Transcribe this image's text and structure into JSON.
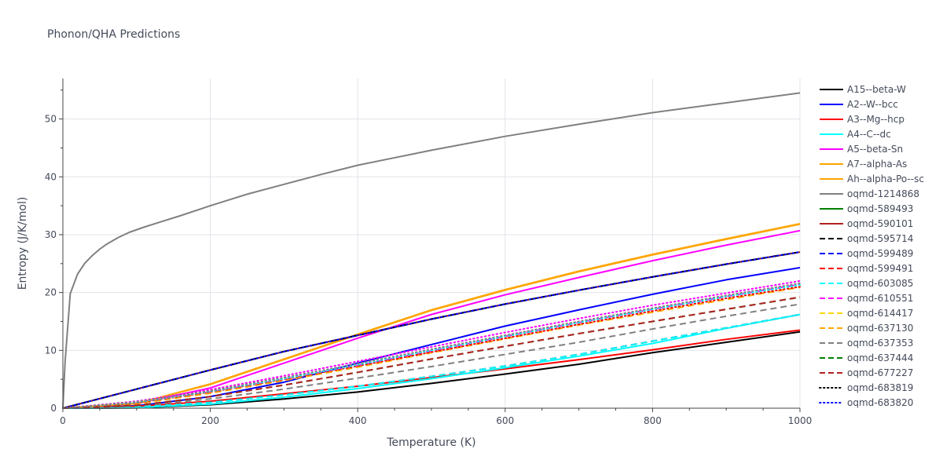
{
  "title": "Phonon/QHA Predictions",
  "chart_data": {
    "type": "line",
    "title": "Phonon/QHA Predictions",
    "xlabel": "Temperature (K)",
    "ylabel": "Entropy (J/K/mol)",
    "xlim": [
      0,
      1000
    ],
    "ylim": [
      0,
      57
    ],
    "x_ticks": [
      0,
      200,
      400,
      600,
      800,
      1000
    ],
    "y_ticks": [
      0,
      10,
      20,
      30,
      40,
      50
    ],
    "grid": true,
    "legend_position": "right",
    "series": [
      {
        "name": "A15--beta-W",
        "color": "#000000",
        "dash": "solid",
        "x": [
          0,
          100,
          200,
          300,
          400,
          500,
          600,
          700,
          800,
          900,
          1000
        ],
        "y": [
          0,
          0.05,
          0.6,
          1.6,
          2.8,
          4.3,
          5.9,
          7.6,
          9.6,
          11.4,
          13.2
        ]
      },
      {
        "name": "A2--W--bcc",
        "color": "#0000ff",
        "dash": "solid",
        "x": [
          0,
          100,
          200,
          300,
          400,
          500,
          600,
          700,
          800,
          900,
          1000
        ],
        "y": [
          0,
          0.4,
          2.0,
          4.5,
          7.8,
          11.0,
          14.2,
          17.0,
          19.7,
          22.2,
          24.3
        ]
      },
      {
        "name": "A3--Mg--hcp",
        "color": "#ff0000",
        "dash": "solid",
        "x": [
          0,
          100,
          200,
          300,
          400,
          500,
          600,
          700,
          800,
          900,
          1000
        ],
        "y": [
          0,
          0.3,
          1.2,
          2.5,
          3.8,
          5.3,
          6.8,
          8.4,
          10.1,
          11.9,
          13.5
        ]
      },
      {
        "name": "A4--C--dc",
        "color": "#00ffff",
        "dash": "solid",
        "x": [
          0,
          100,
          200,
          300,
          400,
          500,
          600,
          700,
          800,
          900,
          1000
        ],
        "y": [
          0,
          0.1,
          0.7,
          1.9,
          3.4,
          5.1,
          7.0,
          9.0,
          11.2,
          13.8,
          16.2
        ]
      },
      {
        "name": "A5--beta-Sn",
        "color": "#ff00ff",
        "dash": "solid",
        "x": [
          0,
          100,
          200,
          300,
          400,
          500,
          600,
          700,
          800,
          900,
          1000
        ],
        "y": [
          0,
          0.8,
          3.5,
          7.8,
          12.1,
          16.2,
          19.6,
          22.6,
          25.5,
          28.2,
          30.7
        ]
      },
      {
        "name": "A7--alpha-As",
        "color": "#ffa500",
        "dash": "solid",
        "x": [
          0,
          100,
          200,
          300,
          400,
          500,
          600,
          700,
          800,
          900,
          1000
        ],
        "y": [
          0,
          0.8,
          4.2,
          8.5,
          12.8,
          17.0,
          20.5,
          23.7,
          26.6,
          29.3,
          31.9
        ]
      },
      {
        "name": "Ah--alpha-Po--sc",
        "color": "#ffa500",
        "dash": "solid",
        "x": [
          0,
          100,
          200,
          300,
          400,
          500,
          600,
          700,
          800,
          900,
          1000
        ],
        "y": [
          0,
          0.8,
          4.1,
          8.4,
          12.7,
          16.9,
          20.4,
          23.6,
          26.5,
          29.2,
          31.8
        ]
      },
      {
        "name": "oqmd-1214868",
        "color": "#808080",
        "dash": "solid",
        "x": [
          0,
          3,
          10,
          20,
          30,
          40,
          50,
          60,
          75,
          90,
          110,
          130,
          160,
          200,
          250,
          300,
          350,
          400,
          450,
          500,
          600,
          700,
          800,
          900,
          1000
        ],
        "y": [
          0,
          8,
          19.8,
          23.2,
          25.1,
          26.4,
          27.5,
          28.4,
          29.5,
          30.4,
          31.3,
          32.1,
          33.3,
          35.0,
          37.0,
          38.7,
          40.4,
          42.0,
          43.3,
          44.6,
          47.0,
          49.1,
          51.1,
          52.8,
          54.5
        ]
      },
      {
        "name": "oqmd-589493",
        "color": "#008000",
        "dash": "solid",
        "x": [
          0,
          100,
          200,
          300,
          400,
          500,
          600,
          700,
          800,
          900,
          1000
        ],
        "y": [
          0,
          3.3,
          6.6,
          9.8,
          12.6,
          15.4,
          18.0,
          20.4,
          22.7,
          24.9,
          27.0
        ]
      },
      {
        "name": "oqmd-590101",
        "color": "#b22222",
        "dash": "solid",
        "x": [
          0,
          100,
          200,
          300,
          400,
          500,
          600,
          700,
          800,
          900,
          1000
        ],
        "y": [
          0,
          3.3,
          6.6,
          9.8,
          12.6,
          15.4,
          18.0,
          20.4,
          22.7,
          24.9,
          27.0
        ]
      },
      {
        "name": "oqmd-595714",
        "color": "#000000",
        "dash": "dash",
        "x": [
          0,
          100,
          200,
          300,
          400,
          500,
          600,
          700,
          800,
          900,
          1000
        ],
        "y": [
          0,
          3.3,
          6.6,
          9.8,
          12.6,
          15.4,
          18.0,
          20.4,
          22.7,
          24.9,
          27.0
        ]
      },
      {
        "name": "oqmd-599489",
        "color": "#0000ff",
        "dash": "dash",
        "x": [
          0,
          100,
          200,
          300,
          400,
          500,
          600,
          700,
          800,
          900,
          1000
        ],
        "y": [
          0,
          0.2,
          1.0,
          2.3,
          3.8,
          5.5,
          7.3,
          9.3,
          11.6,
          13.9,
          16.2
        ]
      },
      {
        "name": "oqmd-599491",
        "color": "#ff0000",
        "dash": "dash",
        "x": [
          0,
          100,
          200,
          300,
          400,
          500,
          600,
          700,
          800,
          900,
          1000
        ],
        "y": [
          0,
          0.2,
          1.0,
          2.3,
          3.8,
          5.5,
          7.3,
          9.3,
          11.6,
          13.9,
          16.2
        ]
      },
      {
        "name": "oqmd-603085",
        "color": "#00ffff",
        "dash": "dash",
        "x": [
          0,
          100,
          200,
          300,
          400,
          500,
          600,
          700,
          800,
          900,
          1000
        ],
        "y": [
          0,
          0.2,
          1.0,
          2.3,
          3.8,
          5.5,
          7.3,
          9.3,
          11.6,
          13.9,
          16.2
        ]
      },
      {
        "name": "oqmd-610551",
        "color": "#ff00ff",
        "dash": "dash",
        "x": [
          0,
          100,
          200,
          300,
          400,
          500,
          600,
          700,
          800,
          900,
          1000
        ],
        "y": [
          0,
          0.9,
          2.8,
          5.0,
          7.4,
          9.9,
          12.4,
          14.8,
          17.1,
          19.3,
          21.4
        ]
      },
      {
        "name": "oqmd-614417",
        "color": "#ffd700",
        "dash": "dash",
        "x": [
          0,
          100,
          200,
          300,
          400,
          500,
          600,
          700,
          800,
          900,
          1000
        ],
        "y": [
          0,
          0.8,
          2.6,
          4.8,
          7.1,
          9.6,
          12.0,
          14.4,
          16.6,
          18.8,
          20.9
        ]
      },
      {
        "name": "oqmd-637130",
        "color": "#ffa500",
        "dash": "dash",
        "x": [
          0,
          100,
          200,
          300,
          400,
          500,
          600,
          700,
          800,
          900,
          1000
        ],
        "y": [
          0,
          0.8,
          2.6,
          4.8,
          7.1,
          9.6,
          12.0,
          14.4,
          16.6,
          18.8,
          20.9
        ]
      },
      {
        "name": "oqmd-637353",
        "color": "#808080",
        "dash": "dash",
        "x": [
          0,
          100,
          200,
          300,
          400,
          500,
          600,
          700,
          800,
          900,
          1000
        ],
        "y": [
          0,
          0.4,
          1.6,
          3.3,
          5.2,
          7.2,
          9.3,
          11.4,
          13.7,
          15.9,
          18.0
        ]
      },
      {
        "name": "oqmd-637444",
        "color": "#008000",
        "dash": "dash",
        "x": [
          0,
          100,
          200,
          300,
          400,
          500,
          600,
          700,
          800,
          900,
          1000
        ],
        "y": [
          0,
          0.5,
          2.0,
          4.0,
          6.2,
          8.5,
          10.7,
          12.9,
          15.0,
          17.1,
          19.2
        ]
      },
      {
        "name": "oqmd-677227",
        "color": "#b22222",
        "dash": "dash",
        "x": [
          0,
          100,
          200,
          300,
          400,
          500,
          600,
          700,
          800,
          900,
          1000
        ],
        "y": [
          0,
          0.5,
          2.0,
          4.0,
          6.2,
          8.5,
          10.7,
          12.9,
          15.0,
          17.1,
          19.2
        ]
      },
      {
        "name": "oqmd-683819",
        "color": "#000000",
        "dash": "dot",
        "x": [
          0,
          100,
          200,
          300,
          400,
          500,
          600,
          700,
          800,
          900,
          1000
        ],
        "y": [
          0,
          3.3,
          6.6,
          9.8,
          12.6,
          15.4,
          18.0,
          20.4,
          22.7,
          24.9,
          27.0
        ]
      },
      {
        "name": "oqmd-683820",
        "color": "#0000ff",
        "dash": "dot",
        "x": [
          0,
          100,
          200,
          300,
          400,
          500,
          600,
          700,
          800,
          900,
          1000
        ],
        "y": [
          0,
          3.3,
          6.6,
          9.8,
          12.6,
          15.4,
          18.0,
          20.4,
          22.7,
          24.9,
          27.0
        ]
      },
      {
        "name": "",
        "color": "#ff0000",
        "dash": "dot",
        "x": [
          0,
          100,
          200,
          300,
          400,
          500,
          600,
          700,
          800,
          900,
          1000
        ],
        "y": [
          0,
          0.9,
          2.8,
          5.0,
          7.3,
          9.7,
          12.1,
          14.5,
          16.8,
          19.0,
          21.0
        ]
      },
      {
        "name": "",
        "color": "#00ffff",
        "dash": "dot",
        "x": [
          0,
          100,
          200,
          300,
          400,
          500,
          600,
          700,
          800,
          900,
          1000
        ],
        "y": [
          0,
          1.0,
          2.9,
          5.1,
          7.5,
          10.0,
          12.4,
          14.8,
          17.1,
          19.3,
          21.3
        ]
      },
      {
        "name": "",
        "color": "#ff00ff",
        "dash": "dot",
        "x": [
          0,
          100,
          200,
          300,
          400,
          500,
          600,
          700,
          800,
          900,
          1000
        ],
        "y": [
          0,
          1.2,
          3.2,
          5.6,
          8.1,
          10.6,
          13.1,
          15.5,
          17.8,
          19.9,
          22.0
        ]
      },
      {
        "name": "",
        "color": "#808080",
        "dash": "dot",
        "x": [
          0,
          100,
          200,
          300,
          400,
          500,
          600,
          700,
          800,
          900,
          1000
        ],
        "y": [
          0,
          1.1,
          3.0,
          5.3,
          7.7,
          10.2,
          12.6,
          15.0,
          17.3,
          19.5,
          21.6
        ]
      }
    ]
  }
}
